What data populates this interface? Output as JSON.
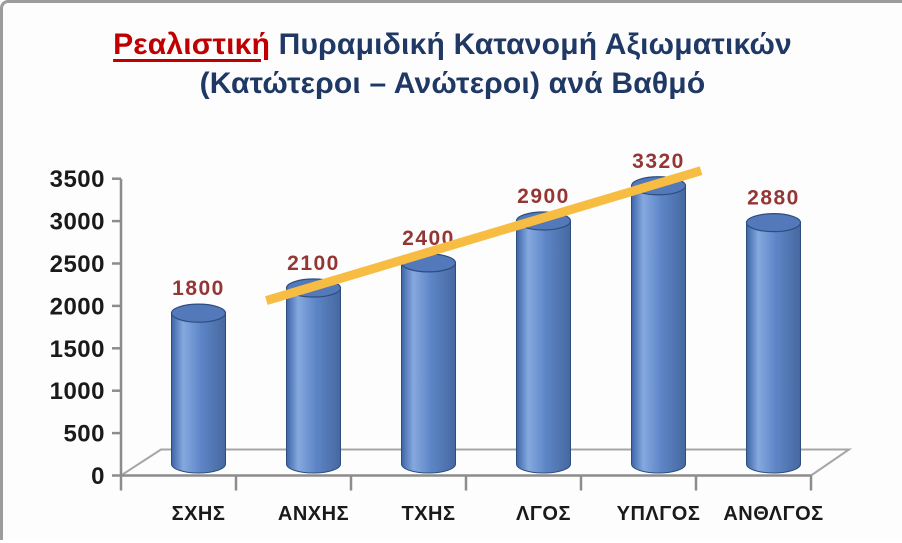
{
  "frame": {
    "background": "#FDFDFE",
    "border_color": "#9C9C9C"
  },
  "title": {
    "emphasis": "Ρεαλιστική",
    "rest": " Πυραμιδική Κατανομή Αξιωματικών",
    "line2": "(Κατώτεροι – Ανώτεροι) ανά Βαθμό",
    "emphasis_color": "#C00000",
    "text_color": "#1F3864"
  },
  "chart_data": {
    "type": "bar",
    "subtype": "3d-cylinder",
    "title": "Ρεαλιστική Πυραμιδική Κατανομή Αξιωματικών (Κατώτεροι – Ανώτεροι) ανά Βαθμό",
    "categories": [
      "ΣΧΗΣ",
      "ΑΝΧΗΣ",
      "ΤΧΗΣ",
      "ΛΓΟΣ",
      "ΥΠΛΓΟΣ",
      "ΑΝΘΛΓΟΣ"
    ],
    "values": [
      1800,
      2100,
      2400,
      2900,
      3320,
      2880
    ],
    "data_labels": [
      "1800",
      "2100",
      "2400",
      "2900",
      "3320",
      "2880"
    ],
    "xlabel": "",
    "ylabel": "",
    "ylim": [
      0,
      3500
    ],
    "yticks": [
      0,
      500,
      1000,
      1500,
      2000,
      2500,
      3000,
      3500
    ],
    "grid": false,
    "legend": false,
    "colors": {
      "bar_fill_main": "#4F81BD",
      "bar_gradient": [
        "#3E65A8",
        "#85A9DF",
        "#5D85C6",
        "#46689F"
      ],
      "bar_top": "#5379BA",
      "bar_outline": "#2C4D7E",
      "value_label": "#943634",
      "axis": "#8C8C8C",
      "floor": "#A6A6A6",
      "tick_label": "#1A1A1A",
      "trend": "#F7BD42"
    },
    "trend_line": {
      "description": "straight rising trend segment drawn across bars ΑΝΧΗΣ through ΥΠΛΓΟΣ",
      "start": {
        "category_index": 0.59,
        "value": 1950
      },
      "end": {
        "category_index": 4.37,
        "value": 3500
      }
    }
  }
}
